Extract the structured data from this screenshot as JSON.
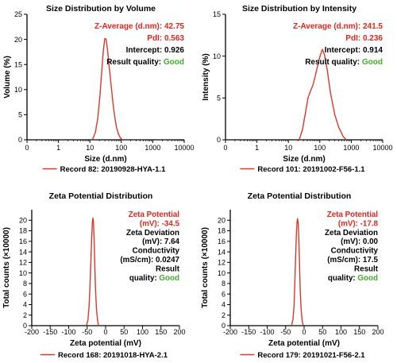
{
  "colors": {
    "curve": "#d9382c",
    "axis": "#000000",
    "red": "#e2261c",
    "green": "#3fae2a",
    "black": "#000000"
  },
  "chart_data": [
    {
      "type": "line",
      "title": "Size Distribution by Volume",
      "xlabel": "Size (d.nm)",
      "ylabel": "Volume (%)",
      "xscale": "log",
      "xlim": [
        0.1,
        10000
      ],
      "ylim": [
        0,
        25
      ],
      "xticks": [
        0.1,
        1,
        10,
        100,
        1000,
        10000
      ],
      "xtick_labels": [
        "0",
        "1",
        "10",
        "100",
        "1000",
        "10000"
      ],
      "yticks": [
        0,
        5,
        10,
        15,
        20,
        25
      ],
      "ytick_labels": [
        "0",
        "5",
        "10",
        "15",
        "20",
        "25"
      ],
      "grid": false,
      "legend_position": "bottom",
      "series": [
        {
          "name": "Record 82: 20190928-HYA-1.1",
          "x": [
            12,
            15,
            18,
            21,
            24,
            27,
            30,
            33,
            37,
            42,
            48,
            55,
            62,
            70,
            80,
            95,
            110
          ],
          "y": [
            0,
            1.5,
            4.5,
            9,
            14,
            18,
            20.2,
            20,
            17.5,
            14,
            10.5,
            7,
            4.5,
            2.5,
            1.2,
            0.3,
            0
          ]
        }
      ],
      "annotations": [
        {
          "label": "Z-Average (d.nm):",
          "value": "42.75",
          "color": "red"
        },
        {
          "label": "PdI:",
          "value": "0.563",
          "color": "red"
        },
        {
          "label": "Intercept:",
          "value": "0.926",
          "color": "black"
        },
        {
          "label": "Result quality:",
          "value": "Good",
          "color": "green"
        }
      ]
    },
    {
      "type": "line",
      "title": "Size Distribution by Intensity",
      "xlabel": "Size (d.nm)",
      "ylabel": "Intensity (%)",
      "xscale": "log",
      "xlim": [
        0.1,
        10000
      ],
      "ylim": [
        0,
        15
      ],
      "xticks": [
        0.1,
        1,
        10,
        100,
        1000,
        10000
      ],
      "xtick_labels": [
        "0",
        "1",
        "10",
        "100",
        "1000",
        "10000"
      ],
      "yticks": [
        0,
        5,
        10,
        15
      ],
      "ytick_labels": [
        "0",
        "5",
        "10",
        "15"
      ],
      "grid": false,
      "legend_position": "bottom",
      "series": [
        {
          "name": "Record 101: 20191002-F56-1.1",
          "x": [
            22,
            28,
            35,
            42,
            50,
            60,
            70,
            85,
            100,
            120,
            140,
            170,
            220,
            300,
            400,
            550,
            700
          ],
          "y": [
            0,
            1.2,
            3.2,
            5,
            5.8,
            6.5,
            7.5,
            8.8,
            9.9,
            10.8,
            10.2,
            8.5,
            5.5,
            3,
            1.5,
            0.4,
            0
          ]
        }
      ],
      "annotations": [
        {
          "label": "Z-Average (d.nm):",
          "value": "241.5",
          "color": "red"
        },
        {
          "label": "PdI:",
          "value": "0.236",
          "color": "red"
        },
        {
          "label": "Intercept:",
          "value": "0.914",
          "color": "black"
        },
        {
          "label": "Result quality:",
          "value": "Good",
          "color": "green"
        }
      ]
    },
    {
      "type": "line",
      "title": "Zeta Potential Distribution",
      "xlabel": "Zeta potential (mV)",
      "ylabel": "Total counts (×10000)",
      "xscale": "linear",
      "xlim": [
        -200,
        200
      ],
      "ylim": [
        0,
        22
      ],
      "xticks": [
        -200,
        -150,
        -100,
        -50,
        0,
        50,
        100,
        150,
        200
      ],
      "xtick_labels": [
        "-200",
        "-150",
        "-100",
        "-50",
        "0",
        "50",
        "100",
        "150",
        "200"
      ],
      "yticks": [
        0,
        2,
        4,
        6,
        8,
        10,
        12,
        14,
        16,
        18,
        20
      ],
      "ytick_labels": [
        "0",
        "2",
        "4",
        "6",
        "8",
        "10",
        "12",
        "14",
        "16",
        "18",
        "20"
      ],
      "grid": false,
      "legend_position": "bottom",
      "series": [
        {
          "name": "Record 168: 20191018-HYA-2.1",
          "x": [
            -52,
            -48,
            -45,
            -42,
            -40,
            -38,
            -36,
            -34.5,
            -33,
            -31,
            -29,
            -27,
            -25,
            -22,
            -19
          ],
          "y": [
            0,
            1,
            3.5,
            8,
            12,
            16,
            19.5,
            20.4,
            19.8,
            16,
            11,
            6.5,
            3.5,
            1,
            0
          ]
        }
      ],
      "annotations": [
        {
          "lines": [
            "Zeta Potential",
            "(mV): -34.5"
          ],
          "color": "red"
        },
        {
          "lines": [
            "Zeta Deviation",
            "(mV): 7.64"
          ],
          "color": "black"
        },
        {
          "lines": [
            "Conductivity",
            "(mS/cm): 0.0247"
          ],
          "color": "black"
        },
        {
          "lines": [
            "Result",
            "quality: Good"
          ],
          "color": "black",
          "highlight": "Good"
        }
      ]
    },
    {
      "type": "line",
      "title": "Zeta Potential Distribution",
      "xlabel": "Zeta potential (mV)",
      "ylabel": "Total counts (×10000)",
      "xscale": "linear",
      "xlim": [
        -200,
        200
      ],
      "ylim": [
        0,
        22
      ],
      "xticks": [
        -200,
        -150,
        -100,
        -50,
        0,
        50,
        100,
        150,
        200
      ],
      "xtick_labels": [
        "-200",
        "-150",
        "-100",
        "-50",
        "0",
        "50",
        "100",
        "150",
        "200"
      ],
      "yticks": [
        0,
        2,
        4,
        6,
        8,
        10,
        12,
        14,
        16,
        18,
        20
      ],
      "ytick_labels": [
        "0",
        "2",
        "4",
        "6",
        "8",
        "10",
        "12",
        "14",
        "16",
        "18",
        "20"
      ],
      "grid": false,
      "legend_position": "bottom",
      "series": [
        {
          "name": "Record 179: 20191021-F56-2.1",
          "x": [
            -34,
            -30,
            -27,
            -25,
            -23,
            -21,
            -19,
            -17.8,
            -16,
            -14,
            -12,
            -10,
            -8,
            -5,
            -2
          ],
          "y": [
            0,
            1.2,
            4,
            8.5,
            13,
            17,
            19.8,
            20.3,
            19.5,
            15.5,
            10.5,
            6,
            3,
            0.8,
            0
          ]
        }
      ],
      "annotations": [
        {
          "lines": [
            "Zeta Potential",
            "(mV): -17.8"
          ],
          "color": "red"
        },
        {
          "lines": [
            "Zeta Deviation",
            "(mV): 0.00"
          ],
          "color": "black"
        },
        {
          "lines": [
            "Conductivity",
            "(mS/cm): 17.5"
          ],
          "color": "black"
        },
        {
          "lines": [
            "Result",
            "quality: Good"
          ],
          "color": "black",
          "highlight": "Good"
        }
      ]
    }
  ]
}
